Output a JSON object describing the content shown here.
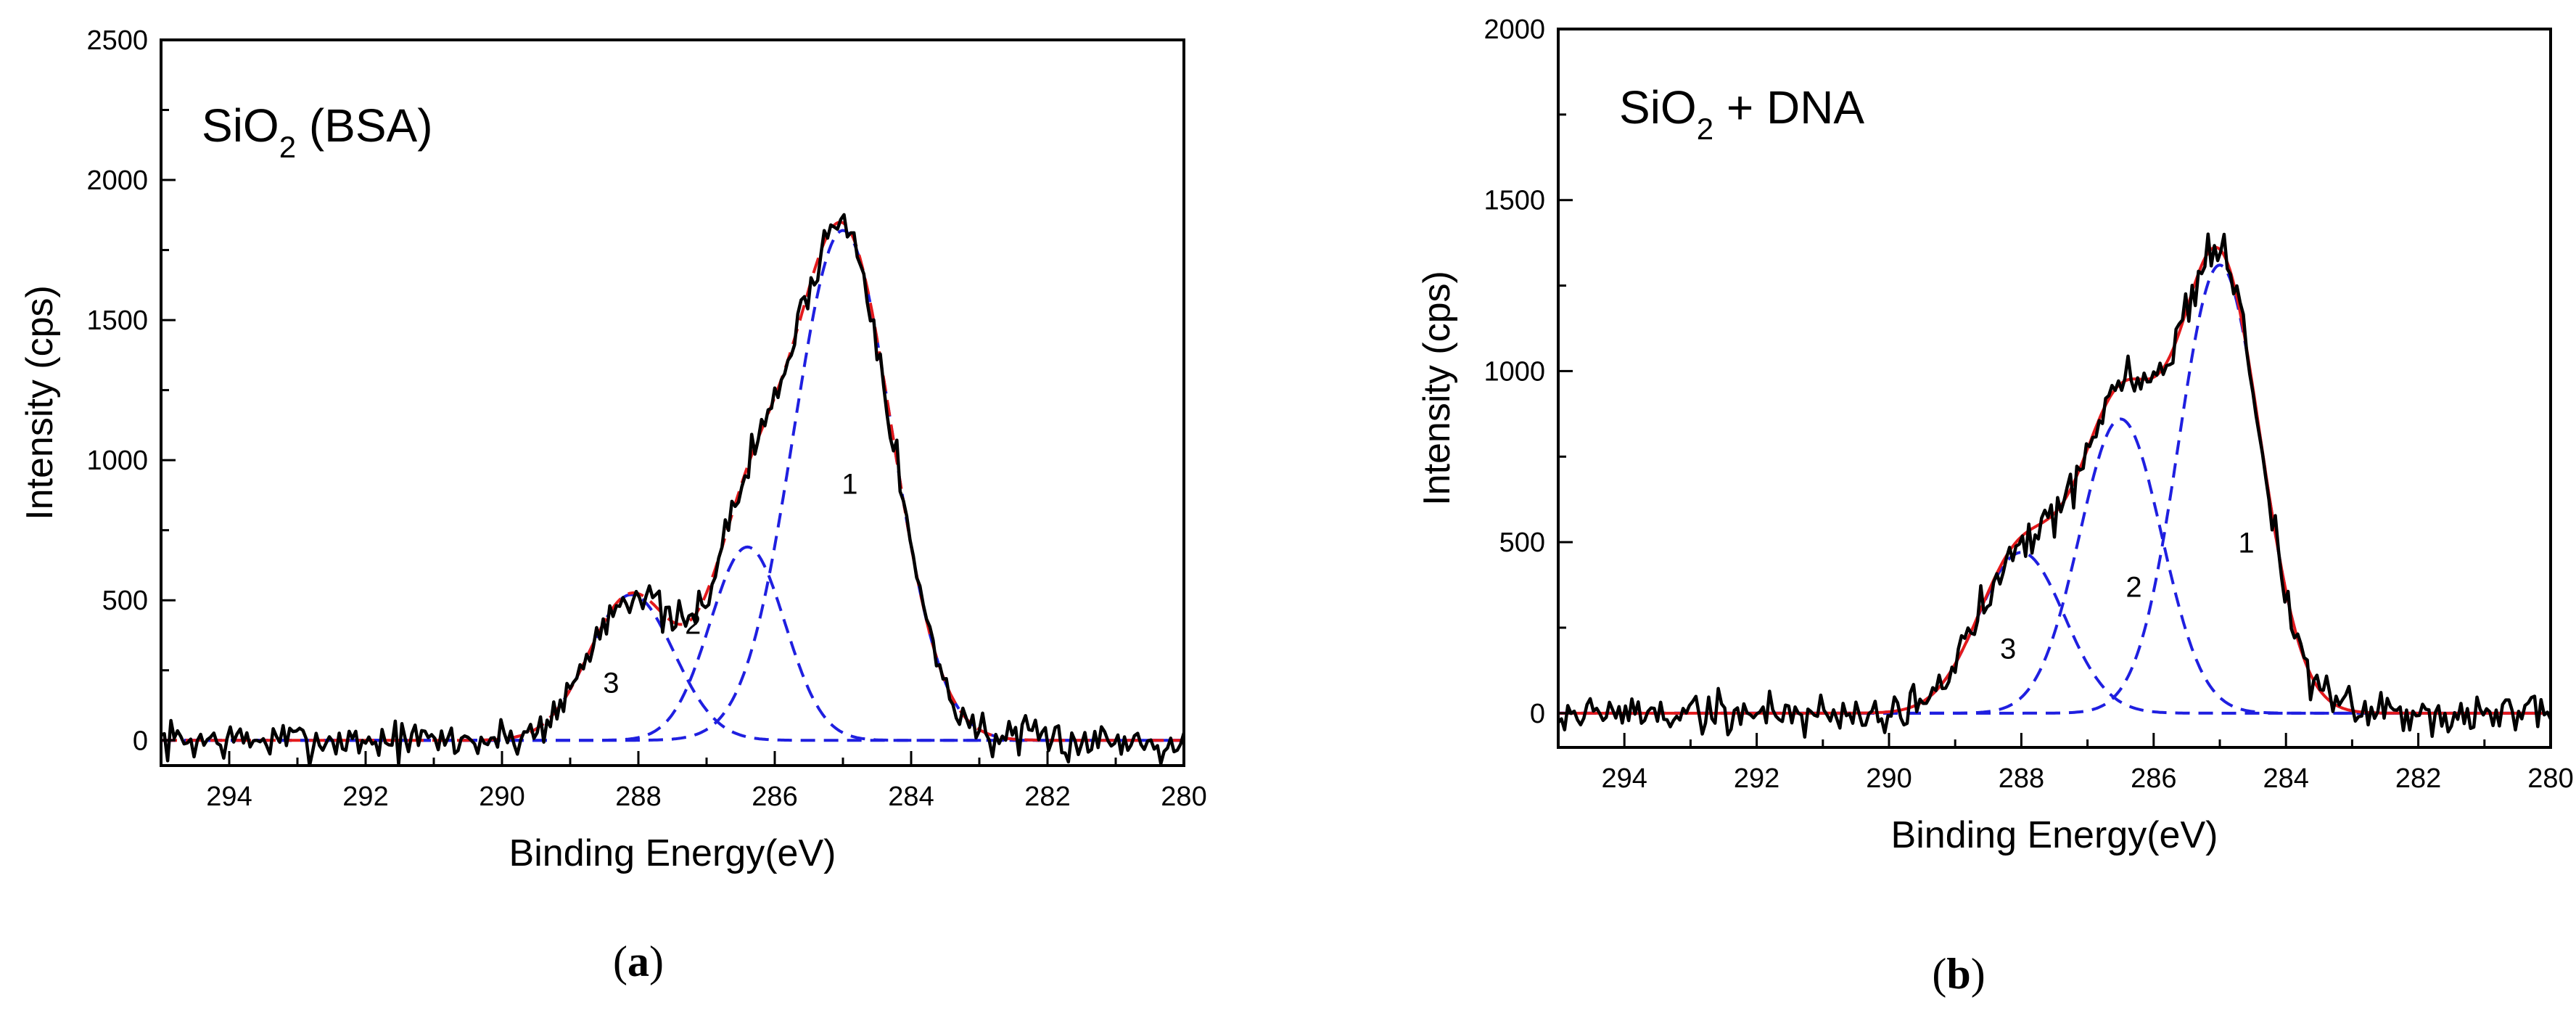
{
  "chart_data": [
    {
      "type": "line",
      "panel": "a",
      "caption_letter": "a",
      "title": {
        "main": "SiO",
        "sub": "2",
        "rest": " (BSA)"
      },
      "xlabel": "Binding Energy(eV)",
      "ylabel": "Intensity (cps)",
      "xlim": [
        295,
        280
      ],
      "ylim": [
        -90,
        2500
      ],
      "xticks": [
        294,
        292,
        290,
        288,
        286,
        284,
        282,
        280
      ],
      "yticks": [
        0,
        500,
        1000,
        1500,
        2000,
        2500
      ],
      "fit_line_style": "dashed",
      "peaks": [
        {
          "label": "1",
          "center": 285.0,
          "amplitude": 1820,
          "sigma": 0.72,
          "label_x": 284.9,
          "label_y": 880
        },
        {
          "label": "2",
          "center": 286.4,
          "amplitude": 690,
          "sigma": 0.55,
          "label_x": 287.2,
          "label_y": 380
        },
        {
          "label": "3",
          "center": 288.1,
          "amplitude": 520,
          "sigma": 0.62,
          "label_x": 288.4,
          "label_y": 170
        }
      ],
      "noise_amplitude": 55,
      "noise_seed": 7,
      "n_points": 310
    },
    {
      "type": "line",
      "panel": "b",
      "caption_letter": "b",
      "title": {
        "main": "SiO",
        "sub": "2",
        "rest": " + DNA"
      },
      "xlabel": "Binding Energy(eV)",
      "ylabel": "Intensity (cps)",
      "xlim": [
        295,
        280
      ],
      "ylim": [
        -100,
        2000
      ],
      "xticks": [
        294,
        292,
        290,
        288,
        286,
        284,
        282,
        280
      ],
      "yticks": [
        0,
        500,
        1000,
        1500,
        2000
      ],
      "fit_line_style": "solid",
      "peaks": [
        {
          "label": "1",
          "center": 285.0,
          "amplitude": 1310,
          "sigma": 0.62,
          "label_x": 284.6,
          "label_y": 470
        },
        {
          "label": "2",
          "center": 286.5,
          "amplitude": 860,
          "sigma": 0.62,
          "label_x": 286.3,
          "label_y": 340
        },
        {
          "label": "3",
          "center": 288.0,
          "amplitude": 470,
          "sigma": 0.65,
          "label_x": 288.2,
          "label_y": 160
        }
      ],
      "noise_amplitude": 50,
      "noise_seed": 19,
      "n_points": 310
    }
  ],
  "colors": {
    "data_line": "#000000",
    "fit_line": "#e31a1c",
    "component_line": "#1f1fe0",
    "axis": "#000000"
  }
}
